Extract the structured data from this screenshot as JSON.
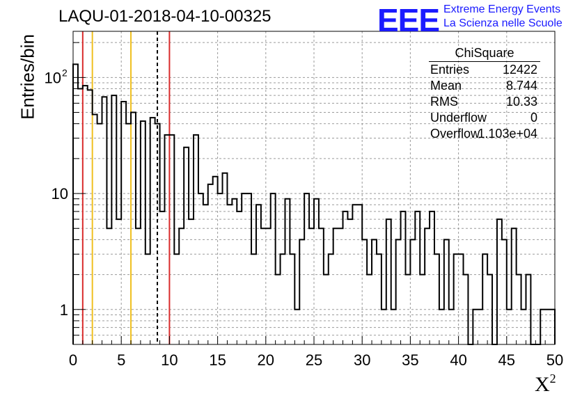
{
  "title": "LAQU-01-2018-04-10-00325",
  "logo": {
    "mark": "EEE",
    "line1": "Extreme Energy Events",
    "line2": "La Scienza nelle Scuole",
    "color": "#1a1aff"
  },
  "stats": {
    "header": "ChiSquare",
    "rows": [
      {
        "name": "Entries",
        "value": "12422"
      },
      {
        "name": "Mean",
        "value": "8.744"
      },
      {
        "name": "RMS",
        "value": "10.33"
      },
      {
        "name": "Underflow",
        "value": "0"
      },
      {
        "name": "Overflow",
        "value": "1.103e+04"
      }
    ]
  },
  "chart_data": {
    "type": "bar",
    "histogram": true,
    "xlabel": "X",
    "xlabel_sup": "2",
    "ylabel": "Entries/bin",
    "xlim": [
      0,
      50
    ],
    "ylim": [
      0.5,
      250
    ],
    "log_y": true,
    "grid": true,
    "bin_width": 0.5,
    "x_ticks": [
      0,
      5,
      10,
      15,
      20,
      25,
      30,
      35,
      40,
      45,
      50
    ],
    "y_ticks": [
      {
        "value": 1,
        "label": "1"
      },
      {
        "value": 10,
        "label": "10"
      },
      {
        "value": 100,
        "label": "10",
        "sup": "2"
      }
    ],
    "values": [
      130,
      80,
      85,
      78,
      48,
      40,
      68,
      5,
      70,
      6,
      62,
      40,
      50,
      5,
      42,
      3,
      45,
      40,
      7,
      32,
      32,
      3,
      5,
      25,
      6,
      32,
      10,
      8,
      12,
      14,
      10,
      15,
      8,
      9,
      7,
      10,
      10,
      3,
      8,
      5,
      5,
      10,
      2,
      3,
      9,
      3,
      1,
      4,
      10,
      5,
      9,
      5,
      2,
      3,
      5,
      5,
      7,
      6,
      8,
      8,
      4,
      2,
      4,
      3,
      1,
      6,
      1,
      4,
      7,
      2,
      4,
      7,
      2,
      5,
      7,
      3,
      1,
      4,
      1,
      3,
      3,
      2,
      0.5,
      1,
      1,
      3,
      2,
      0.5,
      6,
      4,
      1,
      5,
      2,
      1,
      2,
      0.5,
      0.5,
      1,
      1,
      1
    ],
    "vertical_lines": [
      {
        "x": 1,
        "color": "#d92b2b",
        "style": "solid"
      },
      {
        "x": 2,
        "color": "#f0c020",
        "style": "solid"
      },
      {
        "x": 6,
        "color": "#f0c020",
        "style": "solid"
      },
      {
        "x": 8.744,
        "color": "#000000",
        "style": "dashed"
      },
      {
        "x": 10,
        "color": "#d92b2b",
        "style": "solid"
      }
    ]
  }
}
